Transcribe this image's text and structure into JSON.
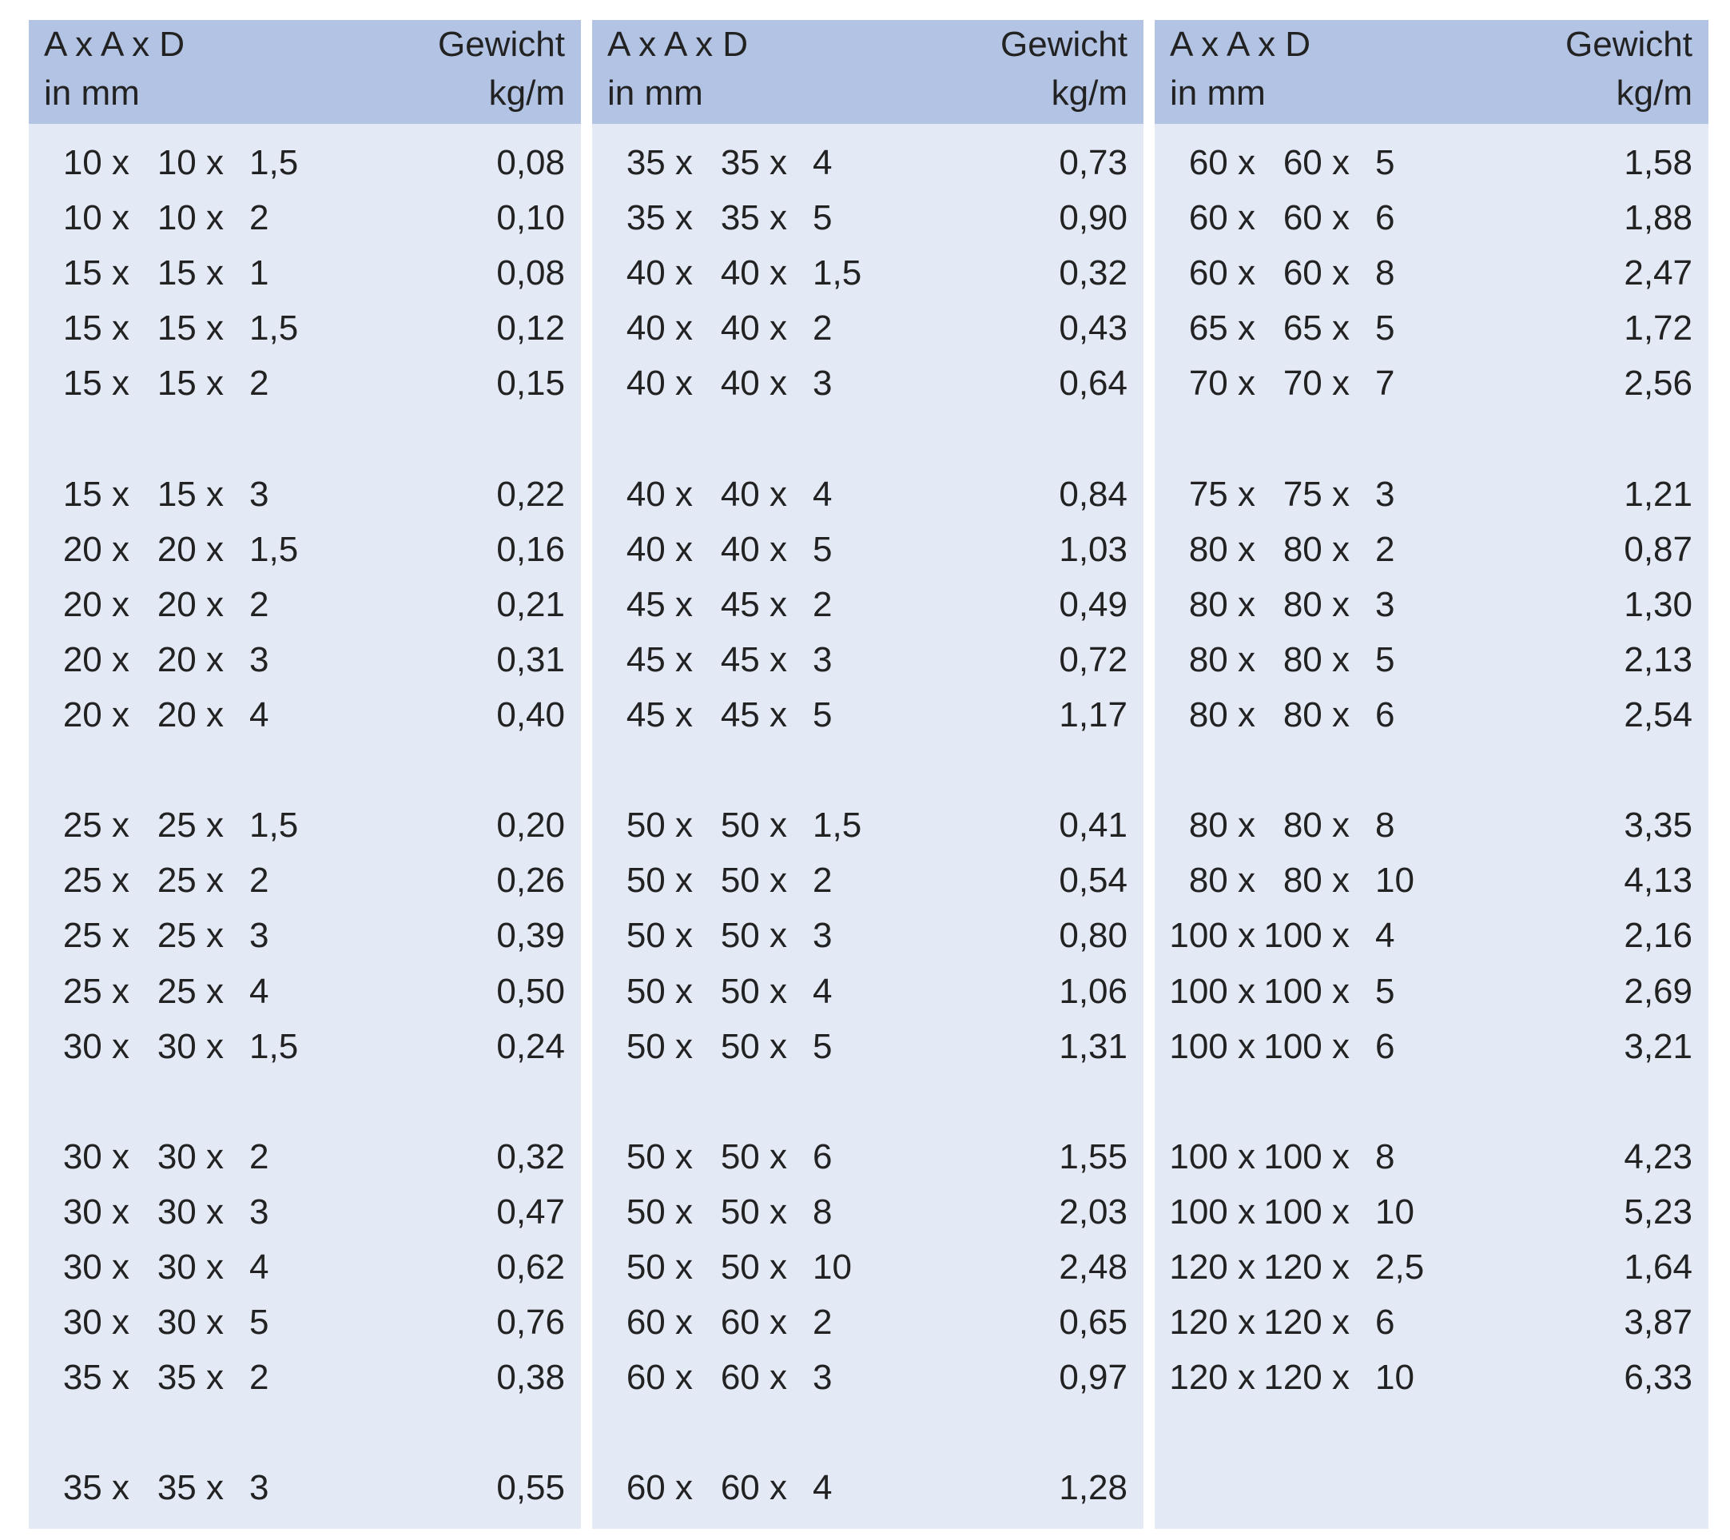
{
  "columns": [
    {
      "header": {
        "left": [
          "A x A x D",
          "in mm"
        ],
        "right": [
          "Gewicht",
          "kg/m"
        ]
      },
      "groups": [
        [
          {
            "dim": [
              "10 x",
              "10 x",
              "1,5"
            ],
            "weight": "0,08"
          },
          {
            "dim": [
              "10 x",
              "10 x",
              "2"
            ],
            "weight": "0,10"
          },
          {
            "dim": [
              "15 x",
              "15 x",
              "1"
            ],
            "weight": "0,08"
          },
          {
            "dim": [
              "15 x",
              "15 x",
              "1,5"
            ],
            "weight": "0,12"
          },
          {
            "dim": [
              "15 x",
              "15 x",
              "2"
            ],
            "weight": "0,15"
          }
        ],
        [
          {
            "dim": [
              "15 x",
              "15 x",
              "3"
            ],
            "weight": "0,22"
          },
          {
            "dim": [
              "20 x",
              "20 x",
              "1,5"
            ],
            "weight": "0,16"
          },
          {
            "dim": [
              "20 x",
              "20 x",
              "2"
            ],
            "weight": "0,21"
          },
          {
            "dim": [
              "20 x",
              "20 x",
              "3"
            ],
            "weight": "0,31"
          },
          {
            "dim": [
              "20 x",
              "20 x",
              "4"
            ],
            "weight": "0,40"
          }
        ],
        [
          {
            "dim": [
              "25 x",
              "25 x",
              "1,5"
            ],
            "weight": "0,20"
          },
          {
            "dim": [
              "25 x",
              "25 x",
              "2"
            ],
            "weight": "0,26"
          },
          {
            "dim": [
              "25 x",
              "25 x",
              "3"
            ],
            "weight": "0,39"
          },
          {
            "dim": [
              "25 x",
              "25 x",
              "4"
            ],
            "weight": "0,50"
          },
          {
            "dim": [
              "30 x",
              "30 x",
              "1,5"
            ],
            "weight": "0,24"
          }
        ],
        [
          {
            "dim": [
              "30 x",
              "30 x",
              "2"
            ],
            "weight": "0,32"
          },
          {
            "dim": [
              "30 x",
              "30 x",
              "3"
            ],
            "weight": "0,47"
          },
          {
            "dim": [
              "30 x",
              "30 x",
              "4"
            ],
            "weight": "0,62"
          },
          {
            "dim": [
              "30 x",
              "30 x",
              "5"
            ],
            "weight": "0,76"
          },
          {
            "dim": [
              "35 x",
              "35 x",
              "2"
            ],
            "weight": "0,38"
          }
        ],
        [
          {
            "dim": [
              "35 x",
              "35 x",
              "3"
            ],
            "weight": "0,55"
          }
        ]
      ]
    },
    {
      "header": {
        "left": [
          "A x A x D",
          "in mm"
        ],
        "right": [
          "Gewicht",
          "kg/m"
        ]
      },
      "groups": [
        [
          {
            "dim": [
              "35 x",
              "35 x",
              "4"
            ],
            "weight": "0,73"
          },
          {
            "dim": [
              "35 x",
              "35 x",
              "5"
            ],
            "weight": "0,90"
          },
          {
            "dim": [
              "40 x",
              "40 x",
              "1,5"
            ],
            "weight": "0,32"
          },
          {
            "dim": [
              "40 x",
              "40 x",
              "2"
            ],
            "weight": "0,43"
          },
          {
            "dim": [
              "40 x",
              "40 x",
              "3"
            ],
            "weight": "0,64"
          }
        ],
        [
          {
            "dim": [
              "40 x",
              "40 x",
              "4"
            ],
            "weight": "0,84"
          },
          {
            "dim": [
              "40 x",
              "40 x",
              "5"
            ],
            "weight": "1,03"
          },
          {
            "dim": [
              "45 x",
              "45 x",
              "2"
            ],
            "weight": "0,49"
          },
          {
            "dim": [
              "45 x",
              "45 x",
              "3"
            ],
            "weight": "0,72"
          },
          {
            "dim": [
              "45 x",
              "45 x",
              "5"
            ],
            "weight": "1,17"
          }
        ],
        [
          {
            "dim": [
              "50 x",
              "50 x",
              "1,5"
            ],
            "weight": "0,41"
          },
          {
            "dim": [
              "50 x",
              "50 x",
              "2"
            ],
            "weight": "0,54"
          },
          {
            "dim": [
              "50 x",
              "50 x",
              "3"
            ],
            "weight": "0,80"
          },
          {
            "dim": [
              "50 x",
              "50 x",
              "4"
            ],
            "weight": "1,06"
          },
          {
            "dim": [
              "50 x",
              "50 x",
              "5"
            ],
            "weight": "1,31"
          }
        ],
        [
          {
            "dim": [
              "50 x",
              "50 x",
              "6"
            ],
            "weight": "1,55"
          },
          {
            "dim": [
              "50 x",
              "50 x",
              "8"
            ],
            "weight": "2,03"
          },
          {
            "dim": [
              "50 x",
              "50 x",
              "10"
            ],
            "weight": "2,48"
          },
          {
            "dim": [
              "60 x",
              "60 x",
              "2"
            ],
            "weight": "0,65"
          },
          {
            "dim": [
              "60 x",
              "60 x",
              "3"
            ],
            "weight": "0,97"
          }
        ],
        [
          {
            "dim": [
              "60 x",
              "60 x",
              "4"
            ],
            "weight": "1,28"
          }
        ]
      ]
    },
    {
      "header": {
        "left": [
          "A x A x D",
          "in mm"
        ],
        "right": [
          "Gewicht",
          "kg/m"
        ]
      },
      "groups": [
        [
          {
            "dim": [
              "60 x",
              "60 x",
              "5"
            ],
            "weight": "1,58"
          },
          {
            "dim": [
              "60 x",
              "60 x",
              "6"
            ],
            "weight": "1,88"
          },
          {
            "dim": [
              "60 x",
              "60 x",
              "8"
            ],
            "weight": "2,47"
          },
          {
            "dim": [
              "65 x",
              "65 x",
              "5"
            ],
            "weight": "1,72"
          },
          {
            "dim": [
              "70 x",
              "70 x",
              "7"
            ],
            "weight": "2,56"
          }
        ],
        [
          {
            "dim": [
              "75 x",
              "75 x",
              "3"
            ],
            "weight": "1,21"
          },
          {
            "dim": [
              "80 x",
              "80 x",
              "2"
            ],
            "weight": "0,87"
          },
          {
            "dim": [
              "80 x",
              "80 x",
              "3"
            ],
            "weight": "1,30"
          },
          {
            "dim": [
              "80 x",
              "80 x",
              "5"
            ],
            "weight": "2,13"
          },
          {
            "dim": [
              "80 x",
              "80 x",
              "6"
            ],
            "weight": "2,54"
          }
        ],
        [
          {
            "dim": [
              "80 x",
              "80 x",
              "8"
            ],
            "weight": "3,35"
          },
          {
            "dim": [
              "80 x",
              "80 x",
              "10"
            ],
            "weight": "4,13"
          },
          {
            "dim": [
              "100 x",
              "100 x",
              "4"
            ],
            "weight": "2,16"
          },
          {
            "dim": [
              "100 x",
              "100 x",
              "5"
            ],
            "weight": "2,69"
          },
          {
            "dim": [
              "100 x",
              "100 x",
              "6"
            ],
            "weight": "3,21"
          }
        ],
        [
          {
            "dim": [
              "100 x",
              "100 x",
              "8"
            ],
            "weight": "4,23"
          },
          {
            "dim": [
              "100 x",
              "100 x",
              "10"
            ],
            "weight": "5,23"
          },
          {
            "dim": [
              "120 x",
              "120 x",
              "2,5"
            ],
            "weight": "1,64"
          },
          {
            "dim": [
              "120 x",
              "120 x",
              "6"
            ],
            "weight": "3,87"
          },
          {
            "dim": [
              "120 x",
              "120 x",
              "10"
            ],
            "weight": "6,33"
          }
        ]
      ]
    }
  ]
}
